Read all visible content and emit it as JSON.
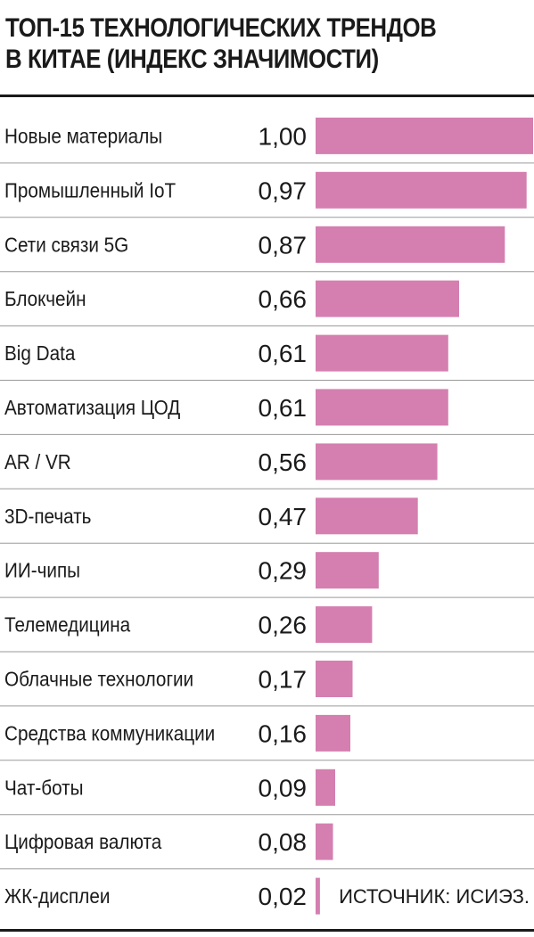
{
  "title_line1": "ТОП-15 ТЕХНОЛОГИЧЕСКИХ ТРЕНДОВ",
  "title_line2": "В КИТАЕ (ИНДЕКС ЗНАЧИМОСТИ)",
  "source": "ИСТОЧНИК: ИСИЭЗ.",
  "colors": {
    "bar": "#d47fb0",
    "text": "#1a1a1a",
    "separator": "#9a9a9a"
  },
  "chart_data": {
    "type": "bar",
    "orientation": "horizontal",
    "title": "ТОП-15 ТЕХНОЛОГИЧЕСКИХ ТРЕНДОВ В КИТАЕ (ИНДЕКС ЗНАЧИМОСТИ)",
    "xlim": [
      0,
      1
    ],
    "grid": false,
    "categories": [
      "Новые материалы",
      "Промышленный IoT",
      "Сети связи 5G",
      "Блокчейн",
      "Big Data",
      "Автоматизация ЦОД",
      "AR / VR",
      "3D-печать",
      "ИИ-чипы",
      "Телемедицина",
      "Облачные технологии",
      "Средства коммуникации",
      "Чат-боты",
      "Цифровая валюта",
      "ЖК-дисплеи"
    ],
    "values": [
      1.0,
      0.97,
      0.87,
      0.66,
      0.61,
      0.61,
      0.56,
      0.47,
      0.29,
      0.26,
      0.17,
      0.16,
      0.09,
      0.08,
      0.02
    ],
    "value_labels": [
      "1,00",
      "0,97",
      "0,87",
      "0,66",
      "0,61",
      "0,61",
      "0,56",
      "0,47",
      "0,29",
      "0,26",
      "0,17",
      "0,16",
      "0,09",
      "0,08",
      "0,02"
    ]
  }
}
